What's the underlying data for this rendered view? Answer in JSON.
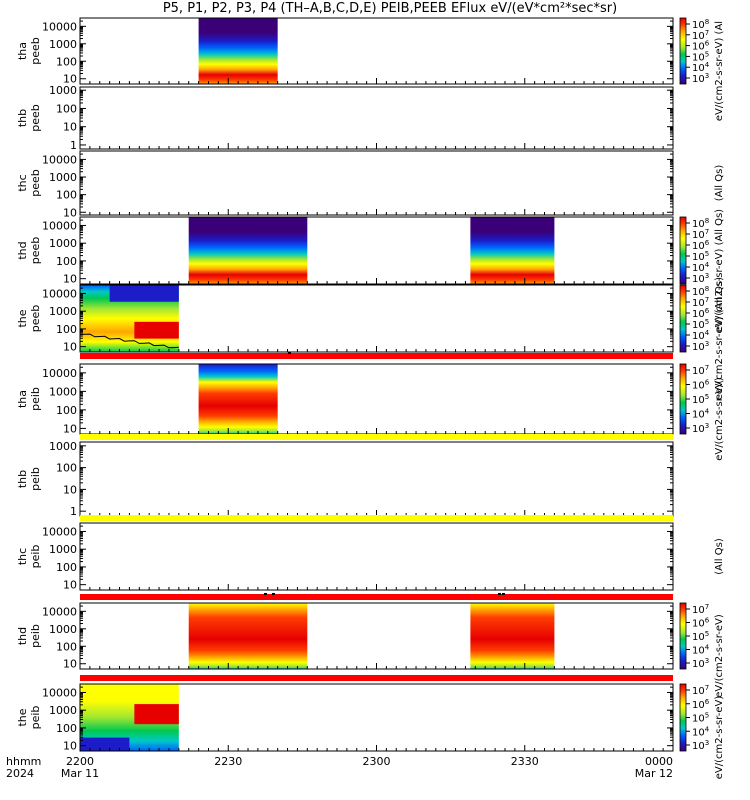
{
  "title": "P5, P1, P2, P3, P4 (TH–A,B,C,D,E) PEIB,PEEB EFlux eV/(eV*cm²*sec*sr)",
  "colors": {
    "palette": [
      "#3a0078",
      "#1c1cc8",
      "#0060ff",
      "#00c8c8",
      "#00c850",
      "#a0e632",
      "#ffff00",
      "#ffa500",
      "#ff3c00",
      "#e60000"
    ],
    "flag_red": "#ff0000",
    "flag_yellow": "#ffff00"
  },
  "chart_data": {
    "type": "heatmap",
    "x_time_ticks": [
      "2200",
      "2230",
      "2300",
      "2330",
      "0000"
    ],
    "x_axis_labels": {
      "left_top": "hhmm",
      "left_bottom": "2024",
      "date_start": "Mar 11",
      "date_end": "Mar 12"
    },
    "x_range_hhmm": [
      "22:00",
      "24:00"
    ],
    "panels": [
      {
        "probe": "tha",
        "instrument": "peeb",
        "ylog": true,
        "ylim": [
          5,
          30000
        ],
        "ytick_labels": [
          "10000",
          "1000",
          "100",
          "10"
        ],
        "colorbar": {
          "ticks": [
            "10^8",
            "10^7",
            "10^6",
            "10^5",
            "10^4",
            "10^3"
          ],
          "label": "eV/(cm2-s-sr-eV) (Al"
        },
        "data_intervals": [
          [
            "22:24",
            "22:40"
          ]
        ]
      },
      {
        "probe": "thb",
        "instrument": "peeb",
        "ylog": true,
        "ylim": [
          0.6,
          1500
        ],
        "ytick_labels": [
          "1000",
          "100",
          "10",
          "1"
        ],
        "data_intervals": []
      },
      {
        "probe": "thc",
        "instrument": "peeb",
        "ylog": true,
        "ylim": [
          7,
          30000
        ],
        "ytick_labels": [
          "10000",
          "1000",
          "100",
          "10"
        ],
        "colorbar_label": "(All Qs)",
        "data_intervals": []
      },
      {
        "probe": "thd",
        "instrument": "peeb",
        "ylog": true,
        "ylim": [
          5,
          30000
        ],
        "ytick_labels": [
          "10000",
          "1000",
          "100",
          "10"
        ],
        "colorbar": {
          "ticks": [
            "10^8",
            "10^7",
            "10^6",
            "10^5",
            "10^4",
            "10^3"
          ],
          "label": "eV/(cm2-s-sr-eV) (All Qs)"
        },
        "data_intervals": [
          [
            "22:22",
            "22:46"
          ],
          [
            "23:19",
            "23:36"
          ]
        ]
      },
      {
        "probe": "the",
        "instrument": "peeb",
        "ylog": true,
        "ylim": [
          5,
          30000
        ],
        "ytick_labels": [
          "10000",
          "1000",
          "100",
          "10"
        ],
        "colorbar": {
          "ticks": [
            "10^8",
            "10^7",
            "10^6",
            "10^5",
            "10^4",
            "10^3"
          ],
          "label": "eV/(cm2-s-sr-eV) (All Qs)"
        },
        "data_intervals": [
          [
            "22:00",
            "22:20"
          ]
        ],
        "overlay_line": "black"
      },
      {
        "probe": "tha",
        "instrument": "peib",
        "ylog": true,
        "ylim": [
          5,
          30000
        ],
        "ytick_labels": [
          "10000",
          "1000",
          "100",
          "10"
        ],
        "colorbar": {
          "ticks": [
            "10^7",
            "10^6",
            "10^5",
            "10^4",
            "10^3"
          ],
          "label": "eV/(cm2-s-sr-eV)"
        },
        "data_intervals": [
          [
            "22:24",
            "22:40"
          ]
        ]
      },
      {
        "probe": "thb",
        "instrument": "peib",
        "ylog": true,
        "ylim": [
          0.6,
          1500
        ],
        "ytick_labels": [
          "1000",
          "100",
          "10",
          "1"
        ],
        "data_intervals": []
      },
      {
        "probe": "thc",
        "instrument": "peib",
        "ylog": true,
        "ylim": [
          5,
          30000
        ],
        "ytick_labels": [
          "10000",
          "1000",
          "100",
          "10"
        ],
        "colorbar_label": "(All Qs)",
        "data_intervals": []
      },
      {
        "probe": "thd",
        "instrument": "peib",
        "ylog": true,
        "ylim": [
          5,
          30000
        ],
        "ytick_labels": [
          "10000",
          "1000",
          "100",
          "10"
        ],
        "colorbar": {
          "ticks": [
            "10^7",
            "10^6",
            "10^5",
            "10^4",
            "10^3"
          ],
          "label": "eV/(cm2-s-sr-eV)"
        },
        "data_intervals": [
          [
            "22:22",
            "22:46"
          ],
          [
            "23:19",
            "23:36"
          ]
        ]
      },
      {
        "probe": "the",
        "instrument": "peib",
        "ylog": true,
        "ylim": [
          5,
          30000
        ],
        "ytick_labels": [
          "10000",
          "1000",
          "100",
          "10"
        ],
        "colorbar": {
          "ticks": [
            "10^7",
            "10^6",
            "10^5",
            "10^4",
            "10^3"
          ],
          "label": "eV/(cm2-s-sr-eV)"
        },
        "data_intervals": [
          [
            "22:00",
            "22:20"
          ]
        ]
      }
    ],
    "flag_bars": [
      {
        "after_panel": 5,
        "color": "red"
      },
      {
        "after_panel": 6,
        "color": "yellow"
      },
      {
        "after_panel": 7,
        "color": "yellow"
      },
      {
        "after_panel": 9,
        "color": "red"
      },
      {
        "after_panel": 10,
        "color": "red"
      }
    ]
  }
}
